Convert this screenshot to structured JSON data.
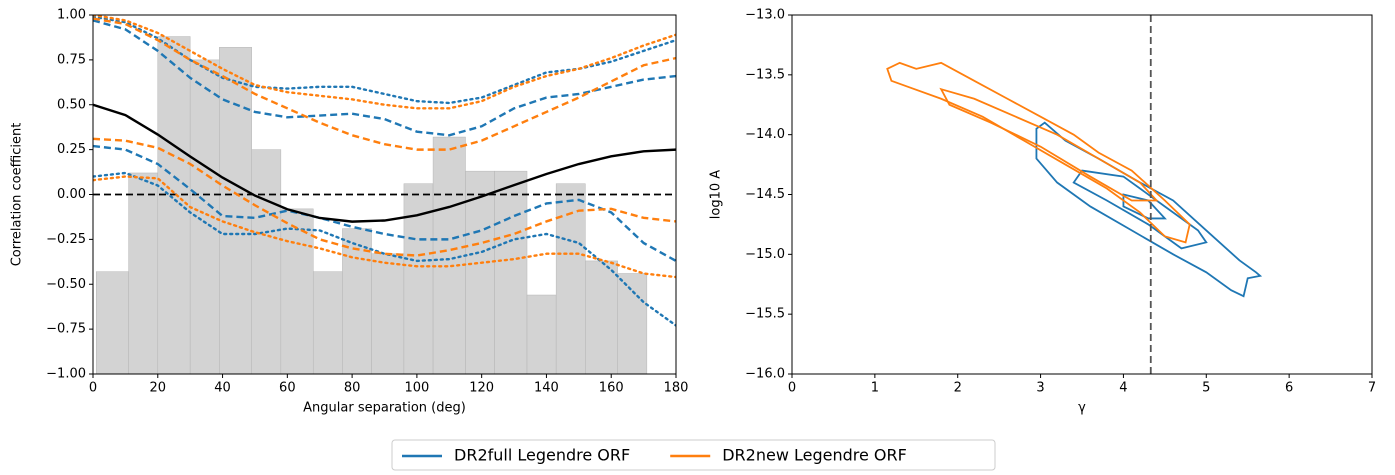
{
  "chart_data": [
    {
      "type": "line",
      "xlabel": "Angular separation (deg)",
      "ylabel": "Correlation coefficient",
      "xlim": [
        0,
        180
      ],
      "ylim": [
        -1,
        1
      ],
      "xticks": [
        0,
        20,
        40,
        60,
        80,
        100,
        120,
        140,
        160,
        180
      ],
      "yticks": [
        {
          "value": -1,
          "label": "−1.00"
        },
        {
          "value": -0.75,
          "label": "−0.75"
        },
        {
          "value": -0.5,
          "label": "−0.50"
        },
        {
          "value": -0.25,
          "label": "−0.25"
        },
        {
          "value": 0,
          "label": "0.00"
        },
        {
          "value": 0.25,
          "label": "0.25"
        },
        {
          "value": 0.5,
          "label": "0.50"
        },
        {
          "value": 0.75,
          "label": "0.75"
        },
        {
          "value": 1,
          "label": "1.00"
        }
      ],
      "histogram": {
        "color": "#d3d3d3",
        "bins": [
          1,
          11,
          20,
          30,
          39,
          49,
          58,
          68,
          77,
          86,
          96,
          105,
          115,
          124,
          134,
          143,
          152,
          162,
          171
        ],
        "values": [
          -0.43,
          0.12,
          0.88,
          0.75,
          0.82,
          0.25,
          -0.08,
          -0.43,
          -0.19,
          -0.33,
          0.06,
          0.32,
          0.13,
          0.13,
          -0.56,
          0.06,
          -0.37,
          -0.44
        ]
      },
      "reference_line": {
        "value": 0,
        "color": "#000000",
        "style": "dashed"
      },
      "x": [
        0,
        10,
        20,
        30,
        40,
        50,
        60,
        70,
        80,
        90,
        100,
        110,
        120,
        130,
        140,
        150,
        160,
        170,
        180
      ],
      "series": [
        {
          "color": "#1f77b4",
          "style": "dashed",
          "values": [
            0.97,
            0.92,
            0.8,
            0.65,
            0.53,
            0.46,
            0.43,
            0.44,
            0.45,
            0.42,
            0.35,
            0.33,
            0.38,
            0.48,
            0.54,
            0.56,
            0.6,
            0.64,
            0.66
          ]
        },
        {
          "color": "#1f77b4",
          "style": "dashed",
          "values": [
            0.27,
            0.25,
            0.17,
            0.03,
            -0.12,
            -0.13,
            -0.09,
            -0.13,
            -0.18,
            -0.22,
            -0.25,
            -0.25,
            -0.2,
            -0.12,
            -0.05,
            -0.03,
            -0.1,
            -0.27,
            -0.37
          ]
        },
        {
          "color": "#1f77b4",
          "style": "dotted",
          "values": [
            0.99,
            0.96,
            0.87,
            0.75,
            0.65,
            0.6,
            0.59,
            0.6,
            0.6,
            0.56,
            0.52,
            0.51,
            0.54,
            0.61,
            0.68,
            0.7,
            0.74,
            0.8,
            0.86
          ]
        },
        {
          "color": "#1f77b4",
          "style": "dotted",
          "values": [
            0.1,
            0.12,
            0.05,
            -0.1,
            -0.22,
            -0.22,
            -0.19,
            -0.2,
            -0.27,
            -0.33,
            -0.37,
            -0.36,
            -0.32,
            -0.25,
            -0.22,
            -0.27,
            -0.42,
            -0.6,
            -0.73
          ]
        },
        {
          "color": "#ff7f0e",
          "style": "dashed",
          "values": [
            0.98,
            0.95,
            0.86,
            0.75,
            0.66,
            0.56,
            0.48,
            0.4,
            0.33,
            0.28,
            0.25,
            0.25,
            0.3,
            0.38,
            0.46,
            0.54,
            0.63,
            0.72,
            0.76
          ]
        },
        {
          "color": "#ff7f0e",
          "style": "dashed",
          "values": [
            0.31,
            0.3,
            0.26,
            0.17,
            0.05,
            -0.06,
            -0.16,
            -0.25,
            -0.3,
            -0.33,
            -0.34,
            -0.31,
            -0.27,
            -0.22,
            -0.15,
            -0.09,
            -0.08,
            -0.13,
            -0.15
          ]
        },
        {
          "color": "#ff7f0e",
          "style": "dotted",
          "values": [
            1.0,
            0.97,
            0.9,
            0.8,
            0.7,
            0.61,
            0.57,
            0.55,
            0.53,
            0.5,
            0.48,
            0.48,
            0.52,
            0.6,
            0.66,
            0.7,
            0.76,
            0.83,
            0.89
          ]
        },
        {
          "color": "#ff7f0e",
          "style": "dotted",
          "values": [
            0.08,
            0.1,
            0.09,
            -0.07,
            -0.15,
            -0.21,
            -0.26,
            -0.3,
            -0.35,
            -0.38,
            -0.4,
            -0.4,
            -0.38,
            -0.36,
            -0.33,
            -0.33,
            -0.38,
            -0.44,
            -0.46
          ]
        },
        {
          "color": "#000000",
          "style": "solid",
          "values": [
            0.5,
            0.4425,
            0.334,
            0.2116,
            0.0942,
            -0.0061,
            -0.0824,
            -0.1309,
            -0.1511,
            -0.1449,
            -0.1159,
            -0.0694,
            -0.0112,
            0.0522,
            0.1144,
            0.1697,
            0.2129,
            0.2406,
            0.25
          ]
        }
      ]
    },
    {
      "type": "contour",
      "xlabel": "γ",
      "ylabel": "log10 A",
      "xlim": [
        0,
        7
      ],
      "ylim": [
        -16,
        -13
      ],
      "xticks": [
        0,
        1,
        2,
        3,
        4,
        5,
        6,
        7
      ],
      "yticks": [
        {
          "value": -16,
          "label": "−16.0"
        },
        {
          "value": -15.5,
          "label": "−15.5"
        },
        {
          "value": -15,
          "label": "−15.0"
        },
        {
          "value": -14.5,
          "label": "−14.5"
        },
        {
          "value": -14,
          "label": "−14.0"
        },
        {
          "value": -13.5,
          "label": "−13.5"
        },
        {
          "value": -13,
          "label": "−13.0"
        }
      ],
      "vline": {
        "value": 4.33,
        "color": "#555555",
        "style": "dashed"
      },
      "contours": [
        {
          "color": "#1f77b4",
          "x": [
            2.95,
            3.05,
            3.3,
            3.7,
            4.2,
            4.6,
            5.0,
            5.4,
            5.6,
            5.65,
            5.5,
            5.45,
            5.3,
            5.0,
            4.6,
            4.1,
            3.6,
            3.2,
            2.95
          ],
          "y": [
            -13.95,
            -13.9,
            -14.05,
            -14.2,
            -14.4,
            -14.55,
            -14.8,
            -15.05,
            -15.15,
            -15.18,
            -15.2,
            -15.35,
            -15.3,
            -15.15,
            -15.0,
            -14.8,
            -14.6,
            -14.4,
            -14.2
          ]
        },
        {
          "color": "#1f77b4",
          "x": [
            3.5,
            4.0,
            4.5,
            4.9,
            5.0,
            4.7,
            4.3,
            3.8,
            3.4
          ],
          "y": [
            -14.3,
            -14.35,
            -14.6,
            -14.8,
            -14.9,
            -14.95,
            -14.75,
            -14.55,
            -14.4
          ]
        },
        {
          "color": "#1f77b4",
          "x": [
            4.0,
            4.3,
            4.5,
            4.3,
            4.0
          ],
          "y": [
            -14.5,
            -14.55,
            -14.7,
            -14.7,
            -14.6
          ]
        },
        {
          "color": "#ff7f0e",
          "x": [
            1.15,
            1.3,
            1.5,
            1.8,
            2.2,
            2.6,
            3.0,
            3.4,
            3.7,
            4.1,
            4.5,
            4.8,
            4.75,
            4.5,
            4.2,
            3.8,
            3.3,
            2.8,
            2.3,
            1.8,
            1.4,
            1.2
          ],
          "y": [
            -13.45,
            -13.4,
            -13.45,
            -13.4,
            -13.55,
            -13.7,
            -13.85,
            -14.0,
            -14.15,
            -14.3,
            -14.55,
            -14.75,
            -14.9,
            -14.85,
            -14.65,
            -14.45,
            -14.25,
            -14.05,
            -13.85,
            -13.7,
            -13.6,
            -13.55
          ]
        },
        {
          "color": "#ff7f0e",
          "x": [
            1.8,
            2.2,
            2.7,
            3.2,
            3.7,
            4.2,
            4.4,
            4.1,
            3.6,
            3.0,
            2.4,
            1.9
          ],
          "y": [
            -13.62,
            -13.7,
            -13.85,
            -14.0,
            -14.2,
            -14.4,
            -14.55,
            -14.55,
            -14.35,
            -14.1,
            -13.9,
            -13.75
          ]
        }
      ]
    }
  ],
  "legend": [
    {
      "label": "DR2full Legendre ORF",
      "color": "#1f77b4"
    },
    {
      "label": "DR2new Legendre ORF",
      "color": "#ff7f0e"
    }
  ]
}
